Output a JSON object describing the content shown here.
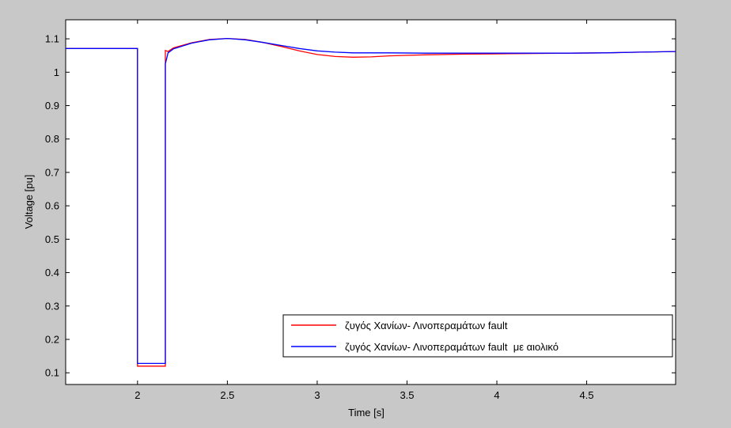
{
  "chart_data": {
    "type": "line",
    "title": "",
    "xlabel": "Time [s]",
    "ylabel": "Voltage [pu]",
    "xlim": [
      1.6,
      4.995
    ],
    "ylim": [
      0.065,
      1.157
    ],
    "xticks": [
      2,
      2.5,
      3,
      3.5,
      4,
      4.5
    ],
    "yticks": [
      0.1,
      0.2,
      0.3,
      0.4,
      0.5,
      0.6,
      0.7,
      0.8,
      0.9,
      1,
      1.1
    ],
    "xtick_labels": [
      "2",
      "2.5",
      "3",
      "3.5",
      "4",
      "4.5"
    ],
    "ytick_labels": [
      "0.1",
      "0.2",
      "0.3",
      "0.4",
      "0.5",
      "0.6",
      "0.7",
      "0.8",
      "0.9",
      "1",
      "1.1"
    ],
    "grid": false,
    "legend_position": "lower-right",
    "series": [
      {
        "name": "ζυγός Χανίων- Λινοπεραμάτων fault",
        "color": "#ff0000",
        "x": [
          1.6,
          2.0,
          2.0,
          2.155,
          2.155,
          2.17,
          2.2,
          2.3,
          2.4,
          2.5,
          2.6,
          2.7,
          2.8,
          2.9,
          3.0,
          3.1,
          3.2,
          3.3,
          3.4,
          3.6,
          3.8,
          4.0,
          4.2,
          4.4,
          4.6,
          4.8,
          4.995
        ],
        "y": [
          1.071,
          1.071,
          0.12,
          0.12,
          1.065,
          1.062,
          1.073,
          1.088,
          1.098,
          1.101,
          1.098,
          1.089,
          1.077,
          1.064,
          1.053,
          1.047,
          1.045,
          1.046,
          1.049,
          1.052,
          1.054,
          1.055,
          1.056,
          1.057,
          1.058,
          1.06,
          1.062
        ]
      },
      {
        "name": "ζυγός Χανίων- Λινοπεραμάτων fault  με αιολικό",
        "color": "#0000ff",
        "x": [
          1.6,
          2.0,
          2.0,
          2.155,
          2.155,
          2.17,
          2.2,
          2.3,
          2.4,
          2.5,
          2.6,
          2.7,
          2.8,
          2.9,
          3.0,
          3.1,
          3.2,
          3.3,
          3.4,
          3.6,
          3.8,
          4.0,
          4.2,
          4.4,
          4.6,
          4.8,
          4.995
        ],
        "y": [
          1.071,
          1.071,
          0.128,
          0.128,
          1.025,
          1.058,
          1.07,
          1.087,
          1.097,
          1.101,
          1.097,
          1.089,
          1.08,
          1.071,
          1.064,
          1.06,
          1.058,
          1.058,
          1.058,
          1.057,
          1.057,
          1.057,
          1.057,
          1.057,
          1.058,
          1.06,
          1.062
        ]
      }
    ]
  }
}
